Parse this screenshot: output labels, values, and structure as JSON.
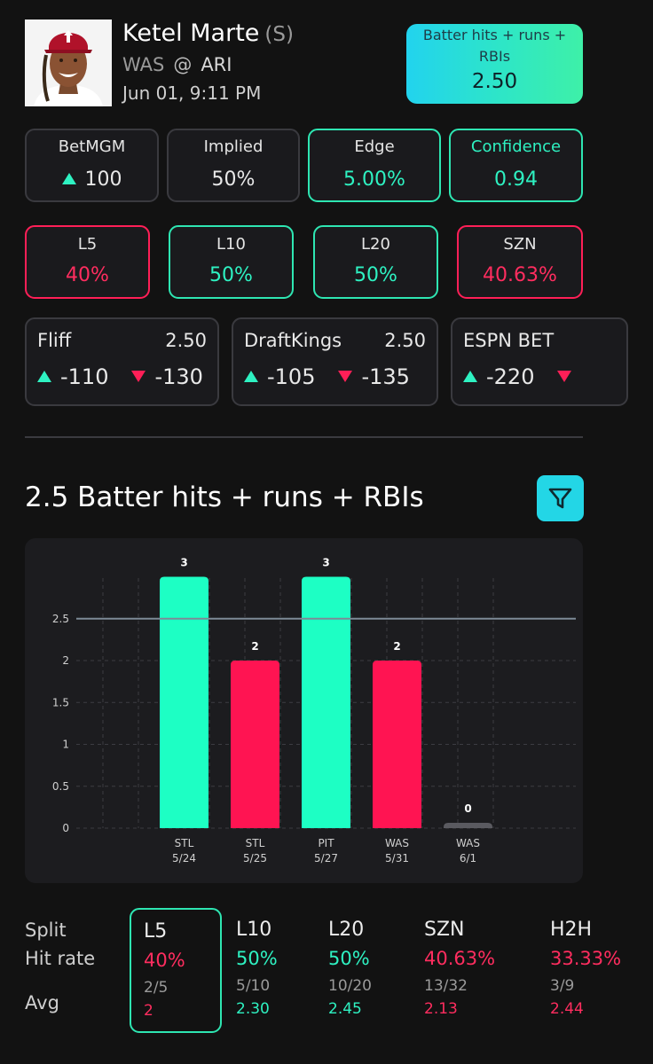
{
  "player": {
    "name": "Ketel Marte",
    "hand": "(S)",
    "away": "WAS",
    "at": "@",
    "home": "ARI",
    "datetime": "Jun 01, 9:11 PM"
  },
  "prop": {
    "label": "Batter hits + runs + RBIs",
    "line": "2.50"
  },
  "tiles_row1": [
    {
      "label": "BetMGM",
      "value": "100",
      "arrow": "up",
      "style": "plain"
    },
    {
      "label": "Implied",
      "value": "50%",
      "style": "plain"
    },
    {
      "label": "Edge",
      "value": "5.00%",
      "style": "green"
    },
    {
      "label": "Confidence",
      "value": "0.94",
      "style": "green"
    }
  ],
  "tiles_row2": [
    {
      "label": "L5",
      "value": "40%",
      "style": "red"
    },
    {
      "label": "L10",
      "value": "50%",
      "style": "green"
    },
    {
      "label": "L20",
      "value": "50%",
      "style": "green"
    },
    {
      "label": "SZN",
      "value": "40.63%",
      "style": "red"
    }
  ],
  "books": [
    {
      "name": "Fliff",
      "line": "2.50",
      "over": "-110",
      "under": "-130"
    },
    {
      "name": "DraftKings",
      "line": "2.50",
      "over": "-105",
      "under": "-135"
    },
    {
      "name": "ESPN BET",
      "line": "",
      "over": "-220",
      "under": ""
    }
  ],
  "section_title": "2.5 Batter hits + runs + RBIs",
  "chart_data": {
    "type": "bar",
    "threshold": 2.5,
    "ylim": [
      0,
      3
    ],
    "yticks": [
      "0",
      "0.5",
      "1",
      "1.5",
      "2",
      "2.5"
    ],
    "ytick_values": [
      0,
      0.5,
      1,
      1.5,
      2,
      2.5
    ],
    "categories": [
      {
        "opp": "STL",
        "date": "5/24"
      },
      {
        "opp": "STL",
        "date": "5/25"
      },
      {
        "opp": "PIT",
        "date": "5/27"
      },
      {
        "opp": "WAS",
        "date": "5/31"
      },
      {
        "opp": "WAS",
        "date": "6/1"
      }
    ],
    "values": [
      3,
      2,
      3,
      2,
      0
    ],
    "value_labels": [
      "3",
      "2",
      "3",
      "2",
      "0"
    ],
    "colors": {
      "over": "#1dffc4",
      "under": "#ff1452",
      "zero": "#5a5a60",
      "line": "#7d8a96",
      "grid": "#3c3c42"
    }
  },
  "splits": {
    "row_labels": {
      "split": "Split",
      "hit_rate": "Hit rate",
      "avg": "Avg"
    },
    "columns": [
      {
        "name": "L5",
        "rate": "40%",
        "frac": "2/5",
        "avg": "2",
        "tone": "red",
        "selected": true
      },
      {
        "name": "L10",
        "rate": "50%",
        "frac": "5/10",
        "avg": "2.30",
        "tone": "green"
      },
      {
        "name": "L20",
        "rate": "50%",
        "frac": "10/20",
        "avg": "2.45",
        "tone": "green"
      },
      {
        "name": "SZN",
        "rate": "40.63%",
        "frac": "13/32",
        "avg": "2.13",
        "tone": "red"
      },
      {
        "name": "H2H",
        "rate": "33.33%",
        "frac": "3/9",
        "avg": "2.44",
        "tone": "red"
      }
    ]
  }
}
